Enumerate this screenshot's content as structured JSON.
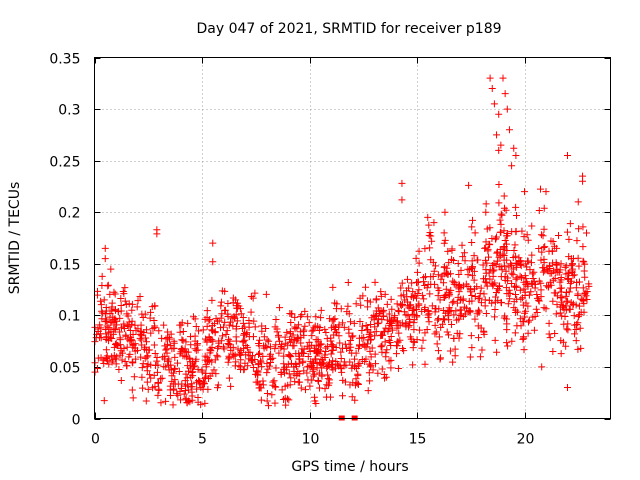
{
  "chart_data": {
    "type": "scatter",
    "title": "Day 047 of 2021, SRMTID for receiver p189",
    "xlabel": "GPS time / hours",
    "ylabel": "SRMTID / TECUs",
    "xlim": [
      0,
      24
    ],
    "ylim": [
      0,
      0.35
    ],
    "xticks": [
      0,
      5,
      10,
      15,
      20
    ],
    "xtick_labels": [
      "0",
      "5",
      "10",
      "15",
      "20"
    ],
    "yticks": [
      0,
      0.05,
      0.1,
      0.15,
      0.2,
      0.25,
      0.3,
      0.35
    ],
    "ytick_labels": [
      "0",
      "0.05",
      "0.1",
      "0.15",
      "0.2",
      "0.25",
      "0.3",
      "0.35"
    ],
    "grid": true,
    "marker": "plus",
    "series_color": "#ff0000",
    "trend": [
      [
        0.0,
        0.075
      ],
      [
        0.5,
        0.09
      ],
      [
        1.0,
        0.085
      ],
      [
        1.5,
        0.08
      ],
      [
        2.0,
        0.07
      ],
      [
        2.5,
        0.075
      ],
      [
        3.0,
        0.065
      ],
      [
        3.5,
        0.055
      ],
      [
        4.0,
        0.05
      ],
      [
        4.5,
        0.048
      ],
      [
        5.0,
        0.055
      ],
      [
        5.5,
        0.07
      ],
      [
        6.0,
        0.085
      ],
      [
        6.5,
        0.08
      ],
      [
        7.0,
        0.075
      ],
      [
        7.5,
        0.065
      ],
      [
        8.0,
        0.055
      ],
      [
        8.5,
        0.05
      ],
      [
        9.0,
        0.06
      ],
      [
        9.5,
        0.07
      ],
      [
        10.0,
        0.065
      ],
      [
        10.5,
        0.062
      ],
      [
        11.0,
        0.07
      ],
      [
        11.5,
        0.065
      ],
      [
        12.0,
        0.06
      ],
      [
        12.5,
        0.07
      ],
      [
        13.0,
        0.08
      ],
      [
        13.5,
        0.09
      ],
      [
        14.0,
        0.095
      ],
      [
        14.5,
        0.1
      ],
      [
        15.0,
        0.12
      ],
      [
        15.5,
        0.13
      ],
      [
        16.0,
        0.12
      ],
      [
        16.5,
        0.11
      ],
      [
        17.0,
        0.12
      ],
      [
        17.5,
        0.13
      ],
      [
        18.0,
        0.135
      ],
      [
        18.5,
        0.14
      ],
      [
        19.0,
        0.15
      ],
      [
        19.5,
        0.13
      ],
      [
        20.0,
        0.125
      ],
      [
        20.5,
        0.13
      ],
      [
        21.0,
        0.14
      ],
      [
        21.5,
        0.13
      ],
      [
        22.0,
        0.12
      ],
      [
        22.5,
        0.13
      ],
      [
        23.0,
        0.13
      ]
    ],
    "spread": 0.022,
    "n_points": 1700,
    "outliers": [
      {
        "x": 0.5,
        "y": 0.165
      },
      {
        "x": 0.5,
        "y": 0.155
      },
      {
        "x": 2.9,
        "y": 0.183
      },
      {
        "x": 2.9,
        "y": 0.179
      },
      {
        "x": 5.5,
        "y": 0.17
      },
      {
        "x": 5.5,
        "y": 0.152
      },
      {
        "x": 14.3,
        "y": 0.228
      },
      {
        "x": 14.3,
        "y": 0.212
      },
      {
        "x": 17.4,
        "y": 0.226
      },
      {
        "x": 18.2,
        "y": 0.2
      },
      {
        "x": 18.4,
        "y": 0.33
      },
      {
        "x": 18.5,
        "y": 0.32
      },
      {
        "x": 18.6,
        "y": 0.305
      },
      {
        "x": 18.8,
        "y": 0.295
      },
      {
        "x": 19.0,
        "y": 0.33
      },
      {
        "x": 19.1,
        "y": 0.315
      },
      {
        "x": 19.2,
        "y": 0.3
      },
      {
        "x": 19.3,
        "y": 0.28
      },
      {
        "x": 19.5,
        "y": 0.262
      },
      {
        "x": 19.6,
        "y": 0.255
      },
      {
        "x": 18.7,
        "y": 0.275
      },
      {
        "x": 18.9,
        "y": 0.265
      },
      {
        "x": 19.4,
        "y": 0.245
      },
      {
        "x": 18.8,
        "y": 0.26
      },
      {
        "x": 22.0,
        "y": 0.255
      },
      {
        "x": 22.7,
        "y": 0.235
      },
      {
        "x": 22.7,
        "y": 0.23
      },
      {
        "x": 21.0,
        "y": 0.22
      },
      {
        "x": 22.5,
        "y": 0.21
      },
      {
        "x": 15.5,
        "y": 0.195
      },
      {
        "x": 16.3,
        "y": 0.2
      },
      {
        "x": 20.0,
        "y": 0.22
      },
      {
        "x": 4.0,
        "y": 0.018
      },
      {
        "x": 1.8,
        "y": 0.02
      },
      {
        "x": 22.0,
        "y": 0.03
      },
      {
        "x": 20.8,
        "y": 0.05
      }
    ],
    "zero_points": [
      {
        "x": 11.5,
        "y": 0.0
      },
      {
        "x": 12.1,
        "y": 0.0
      }
    ]
  }
}
